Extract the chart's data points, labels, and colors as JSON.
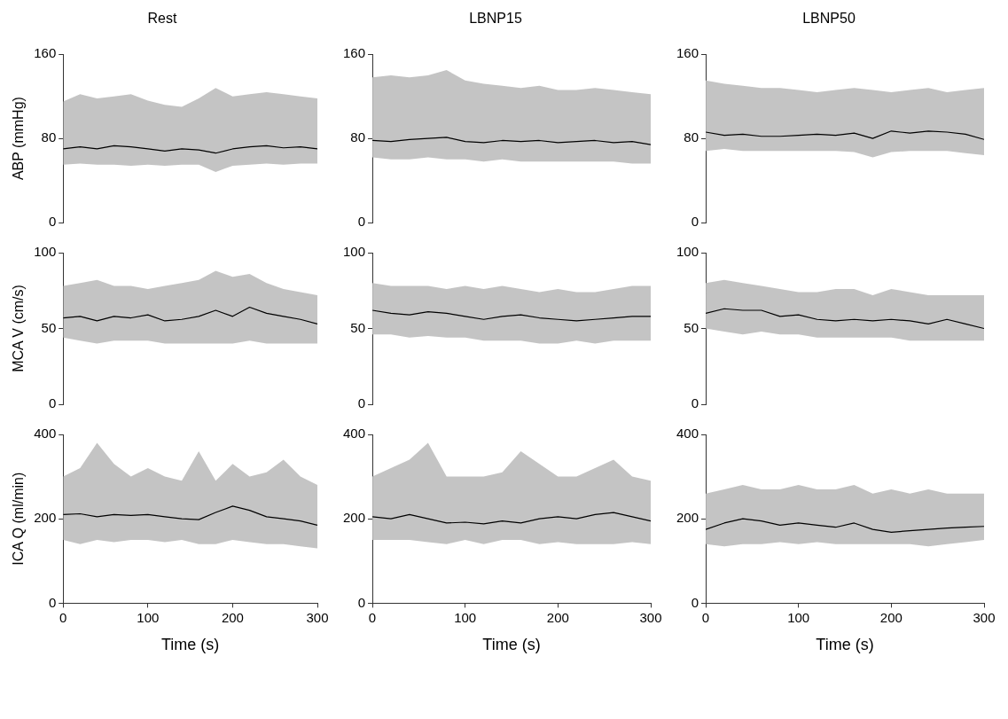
{
  "chart_data": [
    {
      "type": "line",
      "title": "Rest",
      "ylabel": "ABP (mmHg)",
      "x": [
        0,
        20,
        40,
        60,
        80,
        100,
        120,
        140,
        160,
        180,
        200,
        220,
        240,
        260,
        280,
        300
      ],
      "xlim": [
        0,
        300
      ],
      "xticks": [
        0,
        100,
        200,
        300
      ],
      "ylim": [
        0,
        160
      ],
      "yticks": [
        0,
        80,
        160
      ],
      "tick_labels": "y",
      "series": [
        {
          "color": "#000000",
          "values": [
            70,
            72,
            70,
            73,
            72,
            70,
            68,
            70,
            69,
            66,
            70,
            72,
            73,
            71,
            72,
            70
          ],
          "lower": [
            55,
            56,
            55,
            55,
            54,
            55,
            54,
            55,
            55,
            48,
            54,
            55,
            56,
            55,
            56,
            56
          ],
          "upper": [
            115,
            122,
            118,
            120,
            122,
            116,
            112,
            110,
            118,
            128,
            120,
            122,
            124,
            122,
            120,
            118
          ]
        }
      ]
    },
    {
      "type": "line",
      "title": "LBNP15",
      "x": [
        0,
        20,
        40,
        60,
        80,
        100,
        120,
        140,
        160,
        180,
        200,
        220,
        240,
        260,
        280,
        300
      ],
      "xlim": [
        0,
        300
      ],
      "xticks": [
        0,
        100,
        200,
        300
      ],
      "ylim": [
        0,
        160
      ],
      "yticks": [
        0,
        80,
        160
      ],
      "tick_labels": "y",
      "series": [
        {
          "color": "#000000",
          "values": [
            78,
            77,
            79,
            80,
            81,
            77,
            76,
            78,
            77,
            78,
            76,
            77,
            78,
            76,
            77,
            74
          ],
          "lower": [
            62,
            60,
            60,
            62,
            60,
            60,
            58,
            60,
            58,
            58,
            58,
            58,
            58,
            58,
            56,
            56
          ],
          "upper": [
            138,
            140,
            138,
            140,
            145,
            135,
            132,
            130,
            128,
            130,
            126,
            126,
            128,
            126,
            124,
            122
          ]
        }
      ]
    },
    {
      "type": "line",
      "title": "LBNP50",
      "x": [
        0,
        20,
        40,
        60,
        80,
        100,
        120,
        140,
        160,
        180,
        200,
        220,
        240,
        260,
        280,
        300
      ],
      "xlim": [
        0,
        300
      ],
      "xticks": [
        0,
        100,
        200,
        300
      ],
      "ylim": [
        0,
        160
      ],
      "yticks": [
        0,
        80,
        160
      ],
      "tick_labels": "y",
      "series": [
        {
          "color": "#000000",
          "values": [
            86,
            83,
            84,
            82,
            82,
            83,
            84,
            83,
            85,
            80,
            87,
            85,
            87,
            86,
            84,
            79
          ],
          "lower": [
            68,
            70,
            68,
            68,
            68,
            68,
            68,
            68,
            67,
            62,
            67,
            68,
            68,
            68,
            66,
            64
          ],
          "upper": [
            135,
            132,
            130,
            128,
            128,
            126,
            124,
            126,
            128,
            126,
            124,
            126,
            128,
            124,
            126,
            128
          ]
        }
      ]
    },
    {
      "type": "line",
      "ylabel": "MCA V (cm/s)",
      "x": [
        0,
        20,
        40,
        60,
        80,
        100,
        120,
        140,
        160,
        180,
        200,
        220,
        240,
        260,
        280,
        300
      ],
      "xlim": [
        0,
        300
      ],
      "xticks": [
        0,
        100,
        200,
        300
      ],
      "ylim": [
        0,
        100
      ],
      "yticks": [
        0,
        50,
        100
      ],
      "tick_labels": "y",
      "series": [
        {
          "color": "#000000",
          "values": [
            57,
            58,
            55,
            58,
            57,
            59,
            55,
            56,
            58,
            62,
            58,
            64,
            60,
            58,
            56,
            53
          ],
          "lower": [
            44,
            42,
            40,
            42,
            42,
            42,
            40,
            40,
            40,
            40,
            40,
            42,
            40,
            40,
            40,
            40
          ],
          "upper": [
            78,
            80,
            82,
            78,
            78,
            76,
            78,
            80,
            82,
            88,
            84,
            86,
            80,
            76,
            74,
            72
          ]
        }
      ]
    },
    {
      "type": "line",
      "x": [
        0,
        20,
        40,
        60,
        80,
        100,
        120,
        140,
        160,
        180,
        200,
        220,
        240,
        260,
        280,
        300
      ],
      "xlim": [
        0,
        300
      ],
      "xticks": [
        0,
        100,
        200,
        300
      ],
      "ylim": [
        0,
        100
      ],
      "yticks": [
        0,
        50,
        100
      ],
      "tick_labels": "y",
      "series": [
        {
          "color": "#000000",
          "values": [
            62,
            60,
            59,
            61,
            60,
            58,
            56,
            58,
            59,
            57,
            56,
            55,
            56,
            57,
            58,
            58
          ],
          "lower": [
            46,
            46,
            44,
            45,
            44,
            44,
            42,
            42,
            42,
            40,
            40,
            42,
            40,
            42,
            42,
            42
          ],
          "upper": [
            80,
            78,
            78,
            78,
            76,
            78,
            76,
            78,
            76,
            74,
            76,
            74,
            74,
            76,
            78,
            78
          ]
        }
      ]
    },
    {
      "type": "line",
      "x": [
        0,
        20,
        40,
        60,
        80,
        100,
        120,
        140,
        160,
        180,
        200,
        220,
        240,
        260,
        280,
        300
      ],
      "xlim": [
        0,
        300
      ],
      "xticks": [
        0,
        100,
        200,
        300
      ],
      "ylim": [
        0,
        100
      ],
      "yticks": [
        0,
        50,
        100
      ],
      "tick_labels": "y",
      "series": [
        {
          "color": "#000000",
          "values": [
            60,
            63,
            62,
            62,
            58,
            59,
            56,
            55,
            56,
            55,
            56,
            55,
            53,
            56,
            53,
            50
          ],
          "lower": [
            50,
            48,
            46,
            48,
            46,
            46,
            44,
            44,
            44,
            44,
            44,
            42,
            42,
            42,
            42,
            42
          ],
          "upper": [
            80,
            82,
            80,
            78,
            76,
            74,
            74,
            76,
            76,
            72,
            76,
            74,
            72,
            72,
            72,
            72
          ]
        }
      ]
    },
    {
      "type": "line",
      "ylabel": "ICA Q (ml/min)",
      "xlabel": "Time (s)",
      "x": [
        0,
        20,
        40,
        60,
        80,
        100,
        120,
        140,
        160,
        180,
        200,
        220,
        240,
        260,
        280,
        300
      ],
      "xlim": [
        0,
        300
      ],
      "xticks": [
        0,
        100,
        200,
        300
      ],
      "ylim": [
        0,
        400
      ],
      "yticks": [
        0,
        200,
        400
      ],
      "series": [
        {
          "color": "#000000",
          "values": [
            210,
            212,
            205,
            210,
            208,
            210,
            205,
            200,
            198,
            215,
            230,
            220,
            205,
            200,
            195,
            185
          ],
          "lower": [
            150,
            140,
            150,
            145,
            150,
            150,
            145,
            150,
            140,
            140,
            150,
            145,
            140,
            140,
            135,
            130
          ],
          "upper": [
            300,
            320,
            380,
            330,
            300,
            320,
            300,
            290,
            360,
            290,
            330,
            300,
            310,
            340,
            300,
            280
          ]
        }
      ]
    },
    {
      "type": "line",
      "xlabel": "Time (s)",
      "x": [
        0,
        20,
        40,
        60,
        80,
        100,
        120,
        140,
        160,
        180,
        200,
        220,
        240,
        260,
        280,
        300
      ],
      "xlim": [
        0,
        300
      ],
      "xticks": [
        0,
        100,
        200,
        300
      ],
      "ylim": [
        0,
        400
      ],
      "yticks": [
        0,
        200,
        400
      ],
      "series": [
        {
          "color": "#000000",
          "values": [
            205,
            200,
            210,
            200,
            190,
            192,
            188,
            195,
            190,
            200,
            205,
            200,
            210,
            215,
            205,
            195
          ],
          "lower": [
            150,
            150,
            150,
            145,
            140,
            150,
            140,
            150,
            150,
            140,
            145,
            140,
            140,
            140,
            145,
            140
          ],
          "upper": [
            300,
            320,
            340,
            380,
            300,
            300,
            300,
            310,
            360,
            330,
            300,
            300,
            320,
            340,
            300,
            290
          ]
        }
      ]
    },
    {
      "type": "line",
      "xlabel": "Time (s)",
      "x": [
        0,
        20,
        40,
        60,
        80,
        100,
        120,
        140,
        160,
        180,
        200,
        220,
        240,
        260,
        280,
        300
      ],
      "xlim": [
        0,
        300
      ],
      "xticks": [
        0,
        100,
        200,
        300
      ],
      "ylim": [
        0,
        400
      ],
      "yticks": [
        0,
        200,
        400
      ],
      "series": [
        {
          "color": "#000000",
          "values": [
            175,
            190,
            200,
            195,
            185,
            190,
            185,
            180,
            190,
            175,
            168,
            172,
            175,
            178,
            180,
            182
          ],
          "lower": [
            140,
            135,
            140,
            140,
            145,
            140,
            145,
            140,
            140,
            140,
            140,
            140,
            135,
            140,
            145,
            150
          ],
          "upper": [
            260,
            270,
            280,
            270,
            270,
            280,
            270,
            270,
            280,
            260,
            270,
            260,
            270,
            260,
            260,
            260
          ]
        }
      ]
    }
  ]
}
